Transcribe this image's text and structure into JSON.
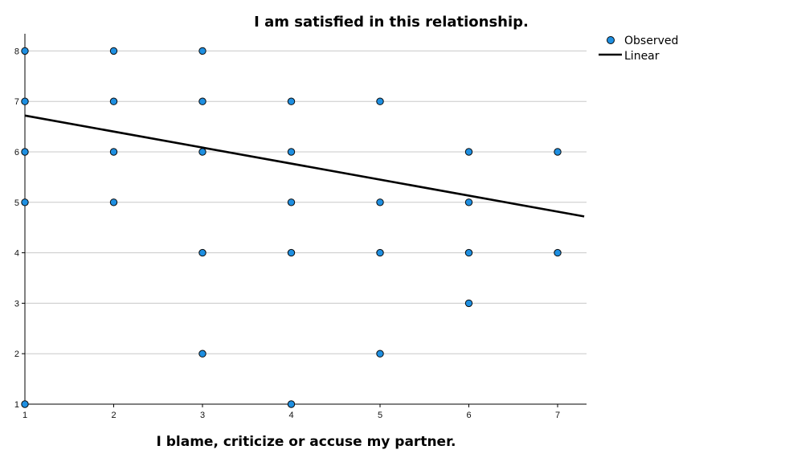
{
  "chart_data": {
    "type": "scatter",
    "title": "I am satisfied in this relationship.",
    "xlabel": "I blame, criticize or accuse my partner.",
    "ylabel": "",
    "xlim": [
      1,
      7.3
    ],
    "ylim": [
      1,
      8.4
    ],
    "x_ticks": [
      "1",
      "2",
      "3",
      "4",
      "5",
      "6",
      "7"
    ],
    "y_ticks": [
      "1",
      "2",
      "3",
      "4",
      "5",
      "6",
      "7",
      "8"
    ],
    "grid": "horizontal",
    "legend_position": "top-right",
    "colors": {
      "points": "#1e8fe1",
      "point_stroke": "#0a0a0a",
      "fit_line": "#000000",
      "grid": "#c8c8c8"
    },
    "series": [
      {
        "name": "Observed",
        "kind": "points",
        "points": [
          [
            1,
            8
          ],
          [
            1,
            7
          ],
          [
            1,
            6
          ],
          [
            1,
            5
          ],
          [
            1,
            1
          ],
          [
            2,
            8
          ],
          [
            2,
            7
          ],
          [
            2,
            6
          ],
          [
            2,
            5
          ],
          [
            3,
            8
          ],
          [
            3,
            7
          ],
          [
            3,
            6
          ],
          [
            3,
            4
          ],
          [
            3,
            2
          ],
          [
            4,
            7
          ],
          [
            4,
            6
          ],
          [
            4,
            5
          ],
          [
            4,
            4
          ],
          [
            4,
            1
          ],
          [
            5,
            7
          ],
          [
            5,
            5
          ],
          [
            5,
            4
          ],
          [
            5,
            2
          ],
          [
            6,
            6
          ],
          [
            6,
            5
          ],
          [
            6,
            4
          ],
          [
            6,
            3
          ],
          [
            7,
            6
          ],
          [
            7,
            4
          ]
        ]
      },
      {
        "name": "Linear",
        "kind": "line",
        "points": [
          [
            1,
            6.72
          ],
          [
            7.3,
            4.72
          ]
        ]
      }
    ]
  }
}
